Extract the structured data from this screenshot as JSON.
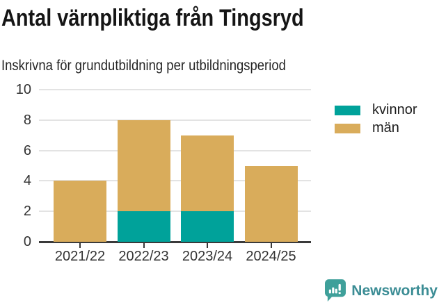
{
  "header": {
    "title": "Antal värnpliktiga från Tingsryd",
    "subtitle": "Inskrivna för grundutbildning per utbildningsperiod"
  },
  "chart_data": {
    "type": "bar",
    "stacked": true,
    "title": "Antal värnpliktiga från Tingsryd",
    "subtitle": "Inskrivna för grundutbildning per utbildningsperiod",
    "categories": [
      "2021/22",
      "2022/23",
      "2023/24",
      "2024/25"
    ],
    "series": [
      {
        "name": "kvinnor",
        "color": "#00A29A",
        "values": [
          0,
          2,
          2,
          0
        ]
      },
      {
        "name": "män",
        "color": "#D9AC5B",
        "values": [
          4,
          6,
          5,
          5
        ]
      }
    ],
    "stack_totals": [
      4,
      8,
      7,
      5
    ],
    "yticks": [
      0,
      2,
      4,
      6,
      8,
      10
    ],
    "ylim": [
      0,
      10
    ],
    "xlabel": "",
    "ylabel": "",
    "grid": "horizontal",
    "gridline_color": "#e3e3e3",
    "axis_color": "#3a3a3a",
    "tick_label_color": "#333333",
    "legend_position": "top-right"
  },
  "footer": {
    "brand": "Newsworthy",
    "brand_color": "#3C8D95",
    "icon_color": "#3FA09A"
  }
}
